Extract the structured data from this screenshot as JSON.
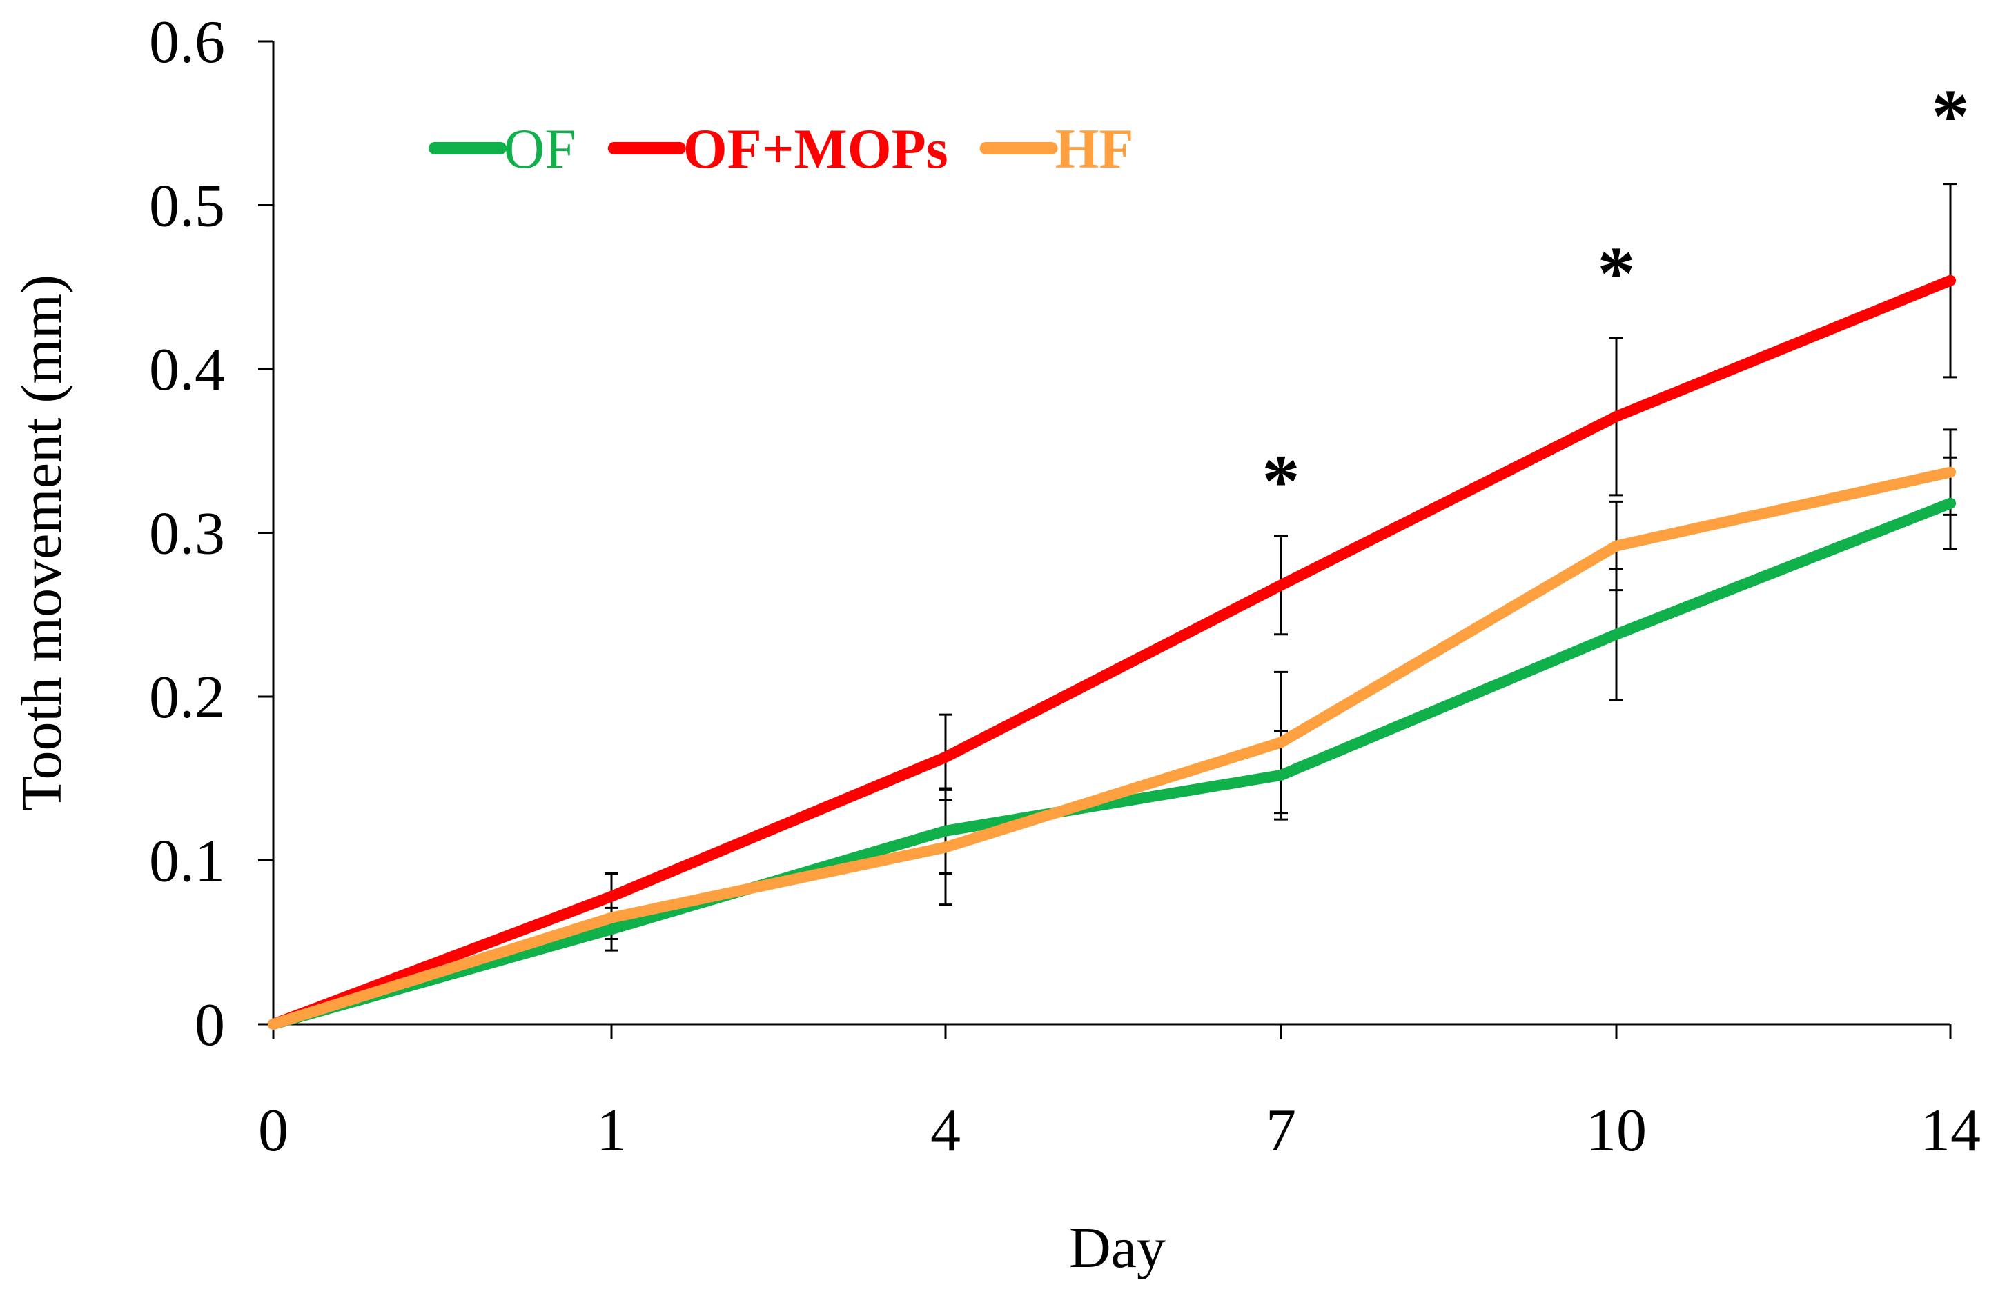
{
  "chart_data": {
    "type": "line",
    "title": "",
    "xlabel": "Day",
    "ylabel": "Tooth movement (mm)",
    "x": [
      0,
      1,
      4,
      7,
      10,
      14
    ],
    "x_tick_labels": [
      "0",
      "1",
      "4",
      "7",
      "10",
      "14"
    ],
    "y_ticks": [
      0,
      0.1,
      0.2,
      0.3,
      0.4,
      0.5,
      0.6
    ],
    "y_tick_labels": [
      "0",
      "0.1",
      "0.2",
      "0.3",
      "0.4",
      "0.5",
      "0.6"
    ],
    "ylim": [
      0,
      0.6
    ],
    "grid": false,
    "legend_position": "top-left",
    "series": [
      {
        "name": "OF",
        "color": "#10b04a",
        "bold": false,
        "values": [
          0,
          0.058,
          0.118,
          0.152,
          0.238,
          0.318
        ],
        "errors": [
          0,
          0.013,
          0.026,
          0.027,
          0.04,
          0.028
        ]
      },
      {
        "name": "OF+MOPs",
        "color": "#ff0000",
        "bold": true,
        "values": [
          0,
          0.078,
          0.163,
          0.268,
          0.371,
          0.454
        ],
        "errors": [
          0,
          0.014,
          0.026,
          0.03,
          0.048,
          0.059
        ]
      },
      {
        "name": "HF",
        "color": "#ffa040",
        "bold": true,
        "values": [
          0,
          0.065,
          0.108,
          0.172,
          0.292,
          0.337
        ],
        "errors": [
          0,
          0.013,
          0.035,
          0.043,
          0.027,
          0.026
        ]
      }
    ],
    "annotations": [
      {
        "x": 7,
        "text": "*",
        "y": 0.335
      },
      {
        "x": 10,
        "text": "*",
        "y": 0.462
      },
      {
        "x": 14,
        "text": "*",
        "y": 0.558
      }
    ]
  }
}
